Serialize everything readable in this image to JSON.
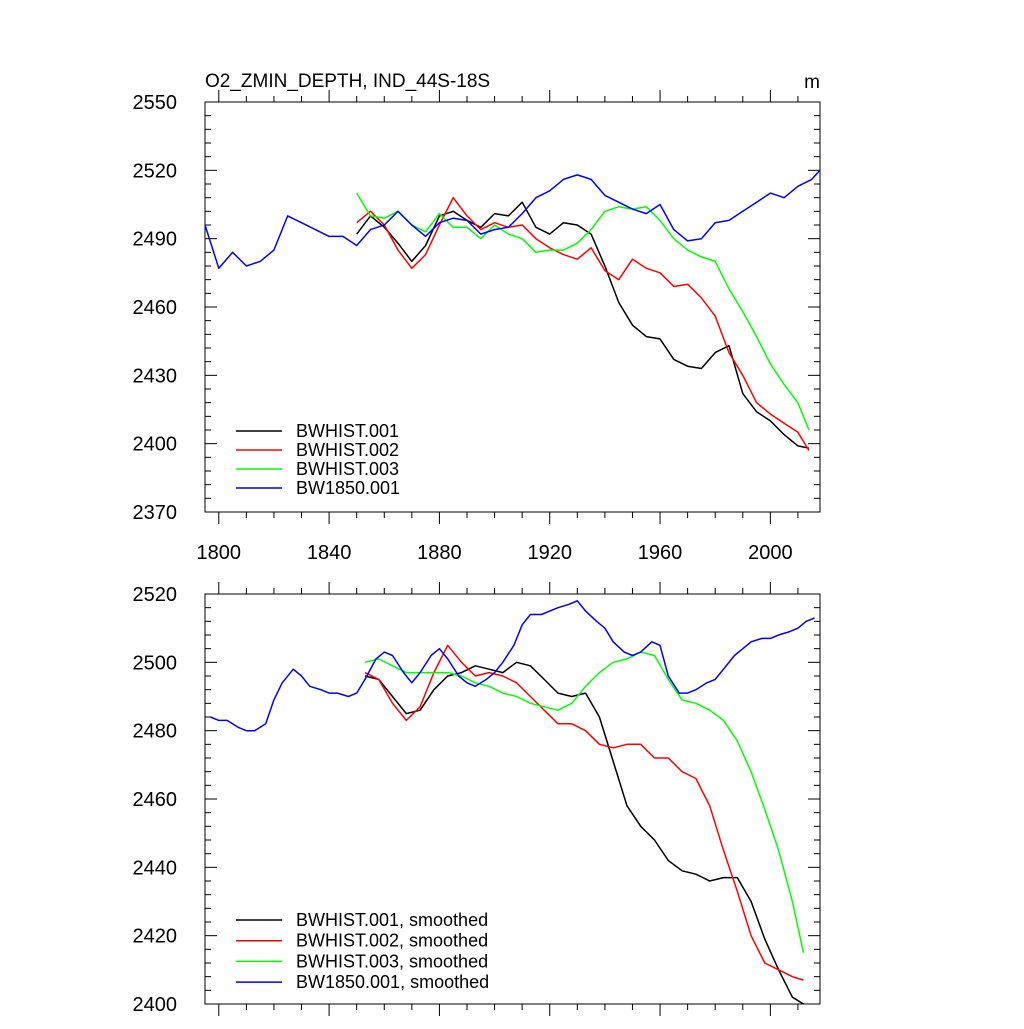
{
  "chart_data": [
    {
      "type": "line",
      "title": "O2_ZMIN_DEPTH, IND_44S-18S",
      "units": "m",
      "xlim": [
        1795,
        2018
      ],
      "ylim": [
        2370,
        2550
      ],
      "xticks": [
        "1800",
        "1840",
        "1880",
        "1920",
        "1960",
        "2000"
      ],
      "yticks": [
        "2370",
        "2400",
        "2430",
        "2460",
        "2490",
        "2520",
        "2550"
      ],
      "legend_position": "bottom-left",
      "series": [
        {
          "name": "BWHIST.001",
          "color": "#000000",
          "x": [
            1850,
            1855,
            1860,
            1865,
            1870,
            1875,
            1880,
            1885,
            1890,
            1895,
            1900,
            1905,
            1910,
            1915,
            1920,
            1925,
            1930,
            1935,
            1940,
            1945,
            1950,
            1955,
            1960,
            1965,
            1970,
            1975,
            1980,
            1985,
            1990,
            1995,
            2000,
            2005,
            2010,
            2014
          ],
          "y": [
            2492,
            2500,
            2495,
            2488,
            2480,
            2487,
            2500,
            2502,
            2498,
            2495,
            2501,
            2500,
            2506,
            2495,
            2492,
            2497,
            2496,
            2492,
            2478,
            2462,
            2452,
            2447,
            2446,
            2437,
            2434,
            2433,
            2440,
            2443,
            2422,
            2414,
            2410,
            2404,
            2399,
            2398
          ]
        },
        {
          "name": "BWHIST.002",
          "color": "#ff0000",
          "x": [
            1850,
            1855,
            1860,
            1865,
            1870,
            1875,
            1880,
            1885,
            1890,
            1895,
            1900,
            1905,
            1910,
            1915,
            1920,
            1925,
            1930,
            1935,
            1940,
            1945,
            1950,
            1955,
            1960,
            1965,
            1970,
            1975,
            1980,
            1985,
            1990,
            1995,
            2000,
            2005,
            2010,
            2014
          ],
          "y": [
            2497,
            2502,
            2496,
            2485,
            2477,
            2483,
            2496,
            2508,
            2500,
            2494,
            2497,
            2495,
            2496,
            2490,
            2486,
            2483,
            2481,
            2486,
            2476,
            2472,
            2481,
            2477,
            2475,
            2469,
            2470,
            2464,
            2456,
            2440,
            2430,
            2418,
            2413,
            2409,
            2405,
            2397
          ]
        },
        {
          "name": "BWHIST.003",
          "color": "#00ff00",
          "x": [
            1850,
            1855,
            1860,
            1865,
            1870,
            1875,
            1880,
            1885,
            1890,
            1895,
            1900,
            1905,
            1910,
            1915,
            1920,
            1925,
            1930,
            1935,
            1940,
            1945,
            1950,
            1955,
            1960,
            1965,
            1970,
            1975,
            1980,
            1985,
            1990,
            1995,
            2000,
            2005,
            2010,
            2014
          ],
          "y": [
            2510,
            2500,
            2499,
            2502,
            2496,
            2493,
            2501,
            2495,
            2495,
            2490,
            2496,
            2492,
            2490,
            2484,
            2485,
            2485,
            2488,
            2494,
            2502,
            2504,
            2503,
            2504,
            2498,
            2490,
            2485,
            2482,
            2480,
            2468,
            2458,
            2447,
            2435,
            2426,
            2418,
            2406
          ]
        },
        {
          "name": "BW1850.001",
          "color": "#0000ff",
          "x": [
            1795,
            1800,
            1805,
            1810,
            1815,
            1820,
            1825,
            1830,
            1835,
            1840,
            1845,
            1850,
            1855,
            1860,
            1865,
            1870,
            1875,
            1880,
            1885,
            1890,
            1895,
            1900,
            1905,
            1910,
            1915,
            1920,
            1925,
            1930,
            1935,
            1940,
            1945,
            1950,
            1955,
            1960,
            1965,
            1970,
            1975,
            1980,
            1985,
            1990,
            1995,
            2000,
            2005,
            2010,
            2015,
            2018
          ],
          "y": [
            2496,
            2477,
            2484,
            2478,
            2480,
            2485,
            2500,
            2497,
            2494,
            2491,
            2491,
            2487,
            2494,
            2496,
            2502,
            2496,
            2491,
            2497,
            2499,
            2498,
            2492,
            2494,
            2495,
            2501,
            2508,
            2511,
            2516,
            2518,
            2516,
            2509,
            2506,
            2503,
            2501,
            2505,
            2494,
            2489,
            2490,
            2497,
            2498,
            2502,
            2506,
            2510,
            2508,
            2513,
            2516,
            2520
          ]
        }
      ]
    },
    {
      "type": "line",
      "xlim": [
        1795,
        2018
      ],
      "ylim": [
        2400,
        2520
      ],
      "yticks": [
        "2400",
        "2420",
        "2440",
        "2460",
        "2480",
        "2500",
        "2520"
      ],
      "legend_position": "bottom-left",
      "series": [
        {
          "name": "BWHIST.001, smoothed",
          "color": "#000000",
          "x": [
            1853,
            1858,
            1863,
            1868,
            1873,
            1878,
            1883,
            1888,
            1893,
            1898,
            1903,
            1908,
            1913,
            1918,
            1923,
            1928,
            1933,
            1938,
            1943,
            1948,
            1953,
            1958,
            1963,
            1968,
            1973,
            1978,
            1983,
            1988,
            1993,
            1998,
            2003,
            2008,
            2012
          ],
          "y": [
            2496,
            2495,
            2490,
            2485,
            2486,
            2492,
            2496,
            2497,
            2499,
            2498,
            2497,
            2500,
            2499,
            2495,
            2491,
            2490,
            2491,
            2484,
            2471,
            2458,
            2452,
            2448,
            2442,
            2439,
            2438,
            2436,
            2437,
            2437,
            2430,
            2419,
            2410,
            2402,
            2400
          ]
        },
        {
          "name": "BWHIST.002, smoothed",
          "color": "#ff0000",
          "x": [
            1853,
            1858,
            1863,
            1868,
            1873,
            1878,
            1883,
            1888,
            1893,
            1898,
            1903,
            1908,
            1913,
            1918,
            1923,
            1928,
            1933,
            1938,
            1943,
            1948,
            1953,
            1958,
            1963,
            1968,
            1973,
            1978,
            1983,
            1988,
            1993,
            1998,
            2003,
            2008,
            2012
          ],
          "y": [
            2497,
            2495,
            2488,
            2483,
            2487,
            2497,
            2505,
            2500,
            2496,
            2497,
            2496,
            2494,
            2490,
            2486,
            2482,
            2482,
            2480,
            2476,
            2475,
            2476,
            2476,
            2472,
            2472,
            2468,
            2466,
            2458,
            2445,
            2433,
            2420,
            2412,
            2410,
            2408,
            2407
          ]
        },
        {
          "name": "BWHIST.003, smoothed",
          "color": "#00ff00",
          "x": [
            1853,
            1858,
            1863,
            1868,
            1873,
            1878,
            1883,
            1888,
            1893,
            1898,
            1903,
            1908,
            1913,
            1918,
            1923,
            1928,
            1933,
            1938,
            1943,
            1948,
            1953,
            1958,
            1963,
            1968,
            1973,
            1978,
            1983,
            1988,
            1993,
            1998,
            2003,
            2008,
            2012
          ],
          "y": [
            2500,
            2501,
            2499,
            2497,
            2497,
            2497,
            2497,
            2496,
            2494,
            2493,
            2491,
            2490,
            2488,
            2487,
            2486,
            2488,
            2493,
            2497,
            2500,
            2501,
            2503,
            2502,
            2495,
            2489,
            2488,
            2486,
            2483,
            2477,
            2468,
            2457,
            2445,
            2430,
            2415
          ]
        },
        {
          "name": "BW1850.001, smoothed",
          "color": "#0000ff",
          "x": [
            1797,
            1800,
            1803,
            1807,
            1810,
            1813,
            1817,
            1820,
            1823,
            1827,
            1830,
            1833,
            1837,
            1840,
            1843,
            1847,
            1850,
            1853,
            1857,
            1860,
            1863,
            1867,
            1870,
            1873,
            1877,
            1880,
            1883,
            1887,
            1890,
            1893,
            1897,
            1900,
            1903,
            1907,
            1910,
            1913,
            1917,
            1920,
            1923,
            1927,
            1930,
            1933,
            1937,
            1940,
            1943,
            1947,
            1950,
            1953,
            1957,
            1960,
            1963,
            1967,
            1970,
            1973,
            1977,
            1980,
            1983,
            1987,
            1990,
            1993,
            1997,
            2000,
            2003,
            2007,
            2010,
            2013,
            2016
          ],
          "y": [
            2484,
            2483,
            2483,
            2481,
            2480,
            2480,
            2482,
            2489,
            2494,
            2498,
            2496,
            2493,
            2492,
            2491,
            2491,
            2490,
            2491,
            2495,
            2501,
            2503,
            2502,
            2497,
            2494,
            2497,
            2502,
            2504,
            2501,
            2496,
            2494,
            2493,
            2495,
            2497,
            2500,
            2505,
            2511,
            2514,
            2514,
            2515,
            2516,
            2517,
            2518,
            2515,
            2512,
            2510,
            2506,
            2503,
            2502,
            2503,
            2506,
            2505,
            2496,
            2491,
            2491,
            2492,
            2494,
            2495,
            2498,
            2502,
            2504,
            2506,
            2507,
            2507,
            2508,
            2509,
            2510,
            2512,
            2513
          ]
        }
      ]
    }
  ]
}
